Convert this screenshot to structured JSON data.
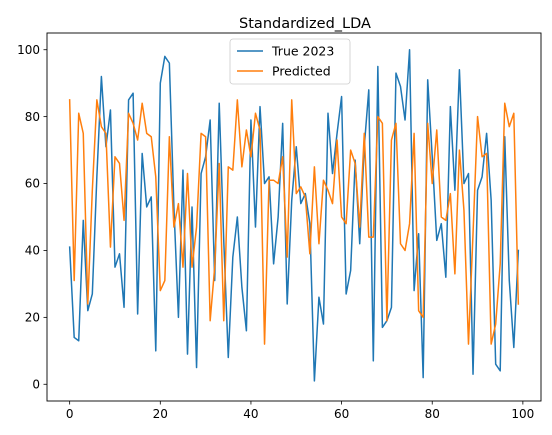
{
  "chart_data": {
    "type": "line",
    "title": "Standardized_LDA",
    "xlabel": "",
    "ylabel": "",
    "xlim": [
      -5,
      104
    ],
    "ylim": [
      -5,
      105
    ],
    "xticks": [
      0,
      20,
      40,
      60,
      80,
      100
    ],
    "yticks": [
      0,
      20,
      40,
      60,
      80,
      100
    ],
    "grid": false,
    "legend_position": "top-center",
    "x": [
      0,
      1,
      2,
      3,
      4,
      5,
      6,
      7,
      8,
      9,
      10,
      11,
      12,
      13,
      14,
      15,
      16,
      17,
      18,
      19,
      20,
      21,
      22,
      23,
      24,
      25,
      26,
      27,
      28,
      29,
      30,
      31,
      32,
      33,
      34,
      35,
      36,
      37,
      38,
      39,
      40,
      41,
      42,
      43,
      44,
      45,
      46,
      47,
      48,
      49,
      50,
      51,
      52,
      53,
      54,
      55,
      56,
      57,
      58,
      59,
      60,
      61,
      62,
      63,
      64,
      65,
      66,
      67,
      68,
      69,
      70,
      71,
      72,
      73,
      74,
      75,
      76,
      77,
      78,
      79,
      80,
      81,
      82,
      83,
      84,
      85,
      86,
      87,
      88,
      89,
      90,
      91,
      92,
      93,
      94,
      95,
      96,
      97,
      98,
      99
    ],
    "series": [
      {
        "name": "True 2023",
        "color": "#1f77b4",
        "values": [
          41,
          14,
          13,
          49,
          22,
          27,
          62,
          92,
          71,
          82,
          35,
          39,
          23,
          85,
          87,
          21,
          69,
          53,
          56,
          10,
          90,
          98,
          96,
          53,
          20,
          64,
          9,
          53,
          5,
          63,
          68,
          79,
          31,
          84,
          43,
          8,
          38,
          50,
          29,
          16,
          79,
          47,
          83,
          60,
          62,
          36,
          50,
          78,
          24,
          55,
          71,
          54,
          57,
          48,
          1,
          26,
          18,
          81,
          63,
          75,
          86,
          27,
          34,
          67,
          42,
          71,
          88,
          7,
          95,
          17,
          19,
          23,
          93,
          89,
          79,
          100,
          28,
          45,
          2,
          91,
          68,
          43,
          48,
          32,
          83,
          58,
          94,
          60,
          63,
          3,
          58,
          62,
          75,
          55,
          6,
          4,
          74,
          31,
          11,
          40
        ]
      },
      {
        "name": "Predicted",
        "color": "#ff7f0e",
        "values": [
          85,
          31,
          81,
          75,
          24,
          58,
          85,
          77,
          75,
          41,
          68,
          66,
          49,
          81,
          78,
          73,
          84,
          75,
          74,
          62,
          28,
          31,
          74,
          47,
          54,
          35,
          63,
          35,
          47,
          75,
          74,
          19,
          35,
          66,
          19,
          65,
          64,
          85,
          65,
          76,
          68,
          81,
          76,
          12,
          61,
          61,
          60,
          68,
          38,
          85,
          57,
          59,
          56,
          39,
          65,
          42,
          61,
          58,
          54,
          73,
          50,
          48,
          70,
          66,
          47,
          75,
          44,
          44,
          80,
          78,
          19,
          73,
          78,
          42,
          40,
          48,
          75,
          22,
          20,
          78,
          60,
          76,
          50,
          49,
          57,
          33,
          70,
          52,
          12,
          45,
          80,
          68,
          69,
          12,
          18,
          36,
          84,
          77,
          81,
          24
        ]
      }
    ]
  }
}
